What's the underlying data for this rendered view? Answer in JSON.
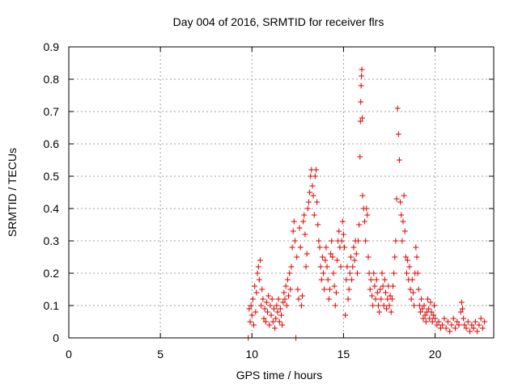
{
  "chart_data": {
    "type": "scatter",
    "title": "Day 004 of 2016, SRMTID for receiver flrs",
    "xlabel": "GPS time / hours",
    "ylabel": "SRMTID / TECUs",
    "xlim": [
      0,
      23.2
    ],
    "ylim": [
      0,
      0.9
    ],
    "xticks": [
      "0",
      "5",
      "10",
      "15",
      "20"
    ],
    "yticks": [
      "0",
      "0.1",
      "0.2",
      "0.3",
      "0.4",
      "0.5",
      "0.6",
      "0.7",
      "0.8",
      "0.9"
    ],
    "grid": true,
    "marker": "+",
    "color": "#dd0000",
    "series": [
      {
        "name": "SRMTID",
        "points": [
          [
            9.8,
            0.0
          ],
          [
            9.85,
            0.09
          ],
          [
            9.9,
            0.05
          ],
          [
            9.95,
            0.1
          ],
          [
            10.0,
            0.07
          ],
          [
            10.05,
            0.12
          ],
          [
            10.1,
            0.04
          ],
          [
            10.15,
            0.16
          ],
          [
            10.2,
            0.08
          ],
          [
            10.25,
            0.14
          ],
          [
            10.3,
            0.2
          ],
          [
            10.35,
            0.22
          ],
          [
            10.4,
            0.18
          ],
          [
            10.45,
            0.24
          ],
          [
            10.5,
            0.1
          ],
          [
            10.55,
            0.15
          ],
          [
            10.6,
            0.12
          ],
          [
            10.65,
            0.06
          ],
          [
            10.7,
            0.09
          ],
          [
            10.75,
            0.05
          ],
          [
            10.8,
            0.11
          ],
          [
            10.85,
            0.08
          ],
          [
            10.9,
            0.13
          ],
          [
            10.95,
            0.04
          ],
          [
            11.0,
            0.1
          ],
          [
            11.05,
            0.07
          ],
          [
            11.1,
            0.12
          ],
          [
            11.15,
            0.05
          ],
          [
            11.2,
            0.09
          ],
          [
            11.25,
            0.03
          ],
          [
            11.3,
            0.06
          ],
          [
            11.35,
            0.1
          ],
          [
            11.4,
            0.08
          ],
          [
            11.45,
            0.12
          ],
          [
            11.5,
            0.05
          ],
          [
            11.55,
            0.09
          ],
          [
            11.6,
            0.07
          ],
          [
            11.65,
            0.04
          ],
          [
            11.7,
            0.11
          ],
          [
            11.75,
            0.14
          ],
          [
            11.8,
            0.12
          ],
          [
            11.85,
            0.16
          ],
          [
            11.9,
            0.1
          ],
          [
            11.95,
            0.18
          ],
          [
            12.0,
            0.13
          ],
          [
            12.05,
            0.2
          ],
          [
            12.1,
            0.15
          ],
          [
            12.15,
            0.22
          ],
          [
            12.2,
            0.28
          ],
          [
            12.25,
            0.33
          ],
          [
            12.3,
            0.36
          ],
          [
            12.35,
            0.3
          ],
          [
            12.4,
            0.0
          ],
          [
            12.45,
            0.25
          ],
          [
            12.5,
            0.15
          ],
          [
            12.55,
            0.12
          ],
          [
            12.6,
            0.34
          ],
          [
            12.65,
            0.28
          ],
          [
            12.7,
            0.1
          ],
          [
            12.75,
            0.13
          ],
          [
            12.8,
            0.36
          ],
          [
            12.85,
            0.38
          ],
          [
            12.9,
            0.32
          ],
          [
            12.95,
            0.22
          ],
          [
            13.0,
            0.26
          ],
          [
            13.05,
            0.4
          ],
          [
            13.1,
            0.42
          ],
          [
            13.15,
            0.45
          ],
          [
            13.2,
            0.5
          ],
          [
            13.25,
            0.52
          ],
          [
            13.3,
            0.47
          ],
          [
            13.35,
            0.44
          ],
          [
            13.4,
            0.38
          ],
          [
            13.45,
            0.5
          ],
          [
            13.5,
            0.52
          ],
          [
            13.55,
            0.42
          ],
          [
            13.6,
            0.35
          ],
          [
            13.65,
            0.3
          ],
          [
            13.7,
            0.28
          ],
          [
            13.75,
            0.22
          ],
          [
            13.8,
            0.18
          ],
          [
            13.85,
            0.25
          ],
          [
            13.9,
            0.2
          ],
          [
            13.95,
            0.15
          ],
          [
            14.0,
            0.24
          ],
          [
            14.05,
            0.28
          ],
          [
            14.1,
            0.22
          ],
          [
            14.15,
            0.18
          ],
          [
            14.2,
            0.12
          ],
          [
            14.25,
            0.15
          ],
          [
            14.3,
            0.26
          ],
          [
            14.35,
            0.3
          ],
          [
            14.4,
            0.25
          ],
          [
            14.45,
            0.2
          ],
          [
            14.5,
            0.16
          ],
          [
            14.55,
            0.1
          ],
          [
            14.6,
            0.14
          ],
          [
            14.65,
            0.24
          ],
          [
            14.7,
            0.3
          ],
          [
            14.75,
            0.33
          ],
          [
            14.8,
            0.28
          ],
          [
            14.85,
            0.22
          ],
          [
            14.9,
            0.3
          ],
          [
            14.95,
            0.36
          ],
          [
            15.0,
            0.32
          ],
          [
            15.05,
            0.28
          ],
          [
            15.1,
            0.07
          ],
          [
            15.15,
            0.18
          ],
          [
            15.2,
            0.22
          ],
          [
            15.25,
            0.12
          ],
          [
            15.3,
            0.15
          ],
          [
            15.35,
            0.2
          ],
          [
            15.4,
            0.25
          ],
          [
            15.45,
            0.18
          ],
          [
            15.5,
            0.22
          ],
          [
            15.55,
            0.28
          ],
          [
            15.6,
            0.24
          ],
          [
            15.65,
            0.3
          ],
          [
            15.7,
            0.26
          ],
          [
            15.75,
            0.2
          ],
          [
            15.8,
            0.3
          ],
          [
            15.85,
            0.35
          ],
          [
            15.9,
            0.56
          ],
          [
            15.92,
            0.67
          ],
          [
            15.94,
            0.73
          ],
          [
            15.96,
            0.78
          ],
          [
            15.98,
            0.81
          ],
          [
            16.0,
            0.83
          ],
          [
            16.02,
            0.68
          ],
          [
            16.04,
            0.44
          ],
          [
            16.1,
            0.4
          ],
          [
            16.15,
            0.36
          ],
          [
            16.2,
            0.3
          ],
          [
            16.25,
            0.4
          ],
          [
            16.3,
            0.38
          ],
          [
            16.35,
            0.25
          ],
          [
            16.4,
            0.2
          ],
          [
            16.45,
            0.15
          ],
          [
            16.5,
            0.18
          ],
          [
            16.55,
            0.13
          ],
          [
            16.6,
            0.1
          ],
          [
            16.65,
            0.2
          ],
          [
            16.7,
            0.16
          ],
          [
            16.75,
            0.12
          ],
          [
            16.8,
            0.18
          ],
          [
            16.85,
            0.14
          ],
          [
            16.9,
            0.1
          ],
          [
            16.95,
            0.08
          ],
          [
            17.0,
            0.15
          ],
          [
            17.05,
            0.12
          ],
          [
            17.1,
            0.2
          ],
          [
            17.15,
            0.16
          ],
          [
            17.2,
            0.1
          ],
          [
            17.25,
            0.18
          ],
          [
            17.3,
            0.14
          ],
          [
            17.35,
            0.09
          ],
          [
            17.4,
            0.12
          ],
          [
            17.45,
            0.16
          ],
          [
            17.5,
            0.1
          ],
          [
            17.55,
            0.13
          ],
          [
            17.6,
            0.08
          ],
          [
            17.65,
            0.12
          ],
          [
            17.7,
            0.16
          ],
          [
            17.75,
            0.2
          ],
          [
            17.8,
            0.25
          ],
          [
            17.85,
            0.3
          ],
          [
            17.9,
            0.43
          ],
          [
            17.95,
            0.71
          ],
          [
            18.0,
            0.63
          ],
          [
            18.05,
            0.55
          ],
          [
            18.1,
            0.42
          ],
          [
            18.15,
            0.38
          ],
          [
            18.2,
            0.3
          ],
          [
            18.25,
            0.36
          ],
          [
            18.3,
            0.44
          ],
          [
            18.35,
            0.33
          ],
          [
            18.4,
            0.25
          ],
          [
            18.45,
            0.2
          ],
          [
            18.5,
            0.24
          ],
          [
            18.55,
            0.18
          ],
          [
            18.6,
            0.22
          ],
          [
            18.65,
            0.15
          ],
          [
            18.7,
            0.12
          ],
          [
            18.75,
            0.18
          ],
          [
            18.8,
            0.14
          ],
          [
            18.85,
            0.1
          ],
          [
            18.9,
            0.2
          ],
          [
            18.95,
            0.28
          ],
          [
            19.0,
            0.25
          ],
          [
            19.05,
            0.2
          ],
          [
            19.1,
            0.15
          ],
          [
            19.15,
            0.1
          ],
          [
            19.2,
            0.08
          ],
          [
            19.25,
            0.12
          ],
          [
            19.3,
            0.09
          ],
          [
            19.35,
            0.06
          ],
          [
            19.4,
            0.1
          ],
          [
            19.45,
            0.07
          ],
          [
            19.5,
            0.05
          ],
          [
            19.55,
            0.08
          ],
          [
            19.6,
            0.12
          ],
          [
            19.65,
            0.09
          ],
          [
            19.7,
            0.06
          ],
          [
            19.75,
            0.11
          ],
          [
            19.8,
            0.08
          ],
          [
            19.85,
            0.05
          ],
          [
            19.9,
            0.07
          ],
          [
            19.95,
            0.1
          ],
          [
            20.0,
            0.06
          ],
          [
            20.1,
            0.04
          ],
          [
            20.2,
            0.05
          ],
          [
            20.3,
            0.03
          ],
          [
            20.4,
            0.04
          ],
          [
            20.5,
            0.06
          ],
          [
            20.6,
            0.03
          ],
          [
            20.7,
            0.05
          ],
          [
            20.8,
            0.02
          ],
          [
            20.9,
            0.04
          ],
          [
            21.0,
            0.06
          ],
          [
            21.1,
            0.03
          ],
          [
            21.2,
            0.05
          ],
          [
            21.3,
            0.04
          ],
          [
            21.4,
            0.08
          ],
          [
            21.45,
            0.11
          ],
          [
            21.5,
            0.09
          ],
          [
            21.55,
            0.06
          ],
          [
            21.6,
            0.04
          ],
          [
            21.7,
            0.03
          ],
          [
            21.8,
            0.05
          ],
          [
            21.9,
            0.02
          ],
          [
            22.0,
            0.04
          ],
          [
            22.1,
            0.03
          ],
          [
            22.2,
            0.05
          ],
          [
            22.3,
            0.02
          ],
          [
            22.4,
            0.04
          ],
          [
            22.5,
            0.06
          ],
          [
            22.6,
            0.03
          ],
          [
            22.7,
            0.05
          ]
        ]
      }
    ]
  }
}
